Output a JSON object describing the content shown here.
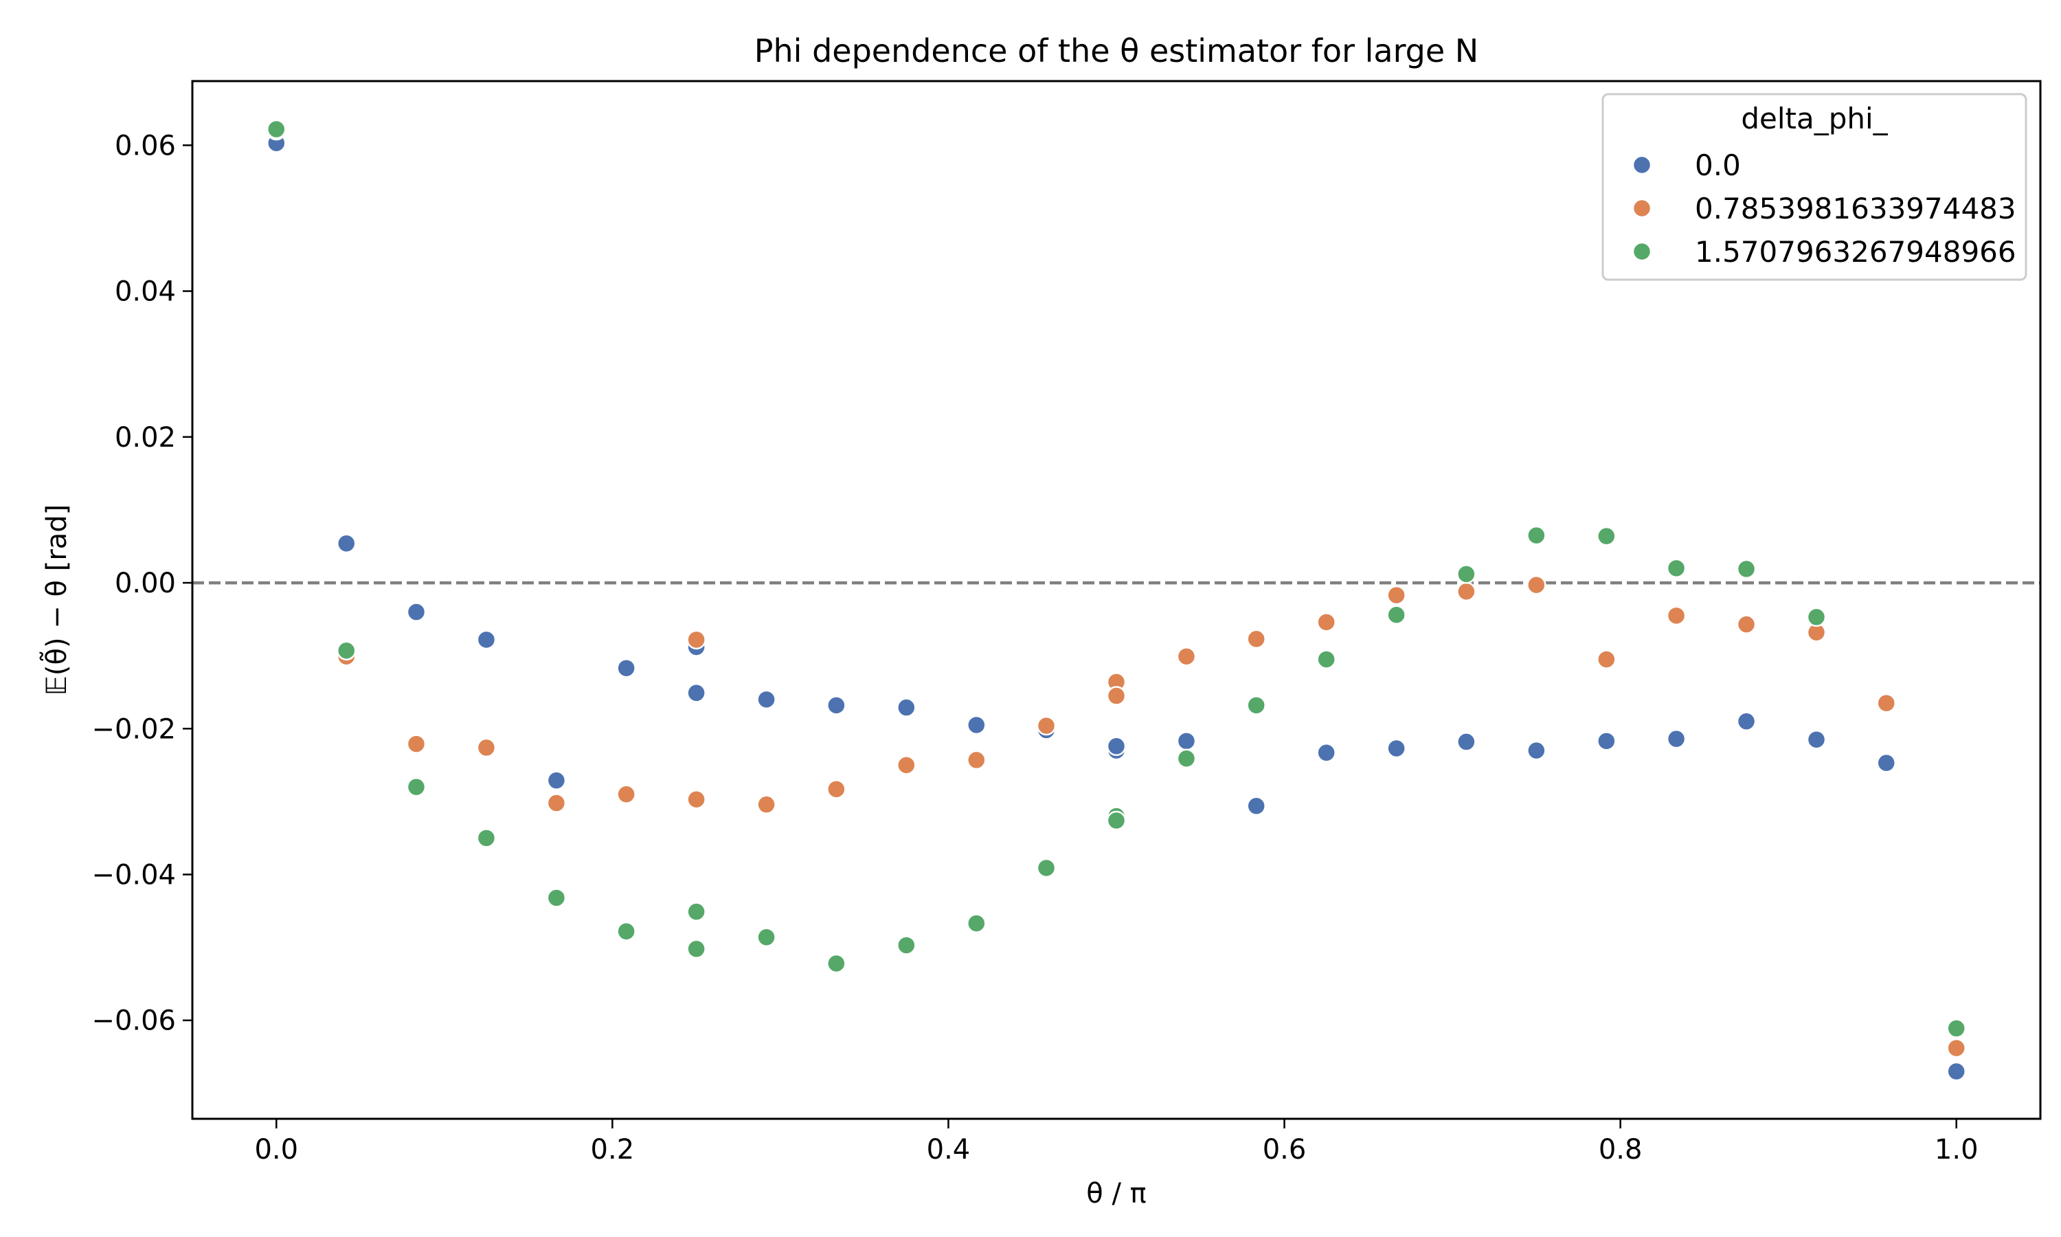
{
  "chart_data": {
    "type": "scatter",
    "title": "Phi dependence of the θ estimator for large N",
    "xlabel": "θ / π",
    "ylabel": "𝔼(θ̃) − θ [rad]",
    "xlim": [
      -0.05,
      1.05
    ],
    "ylim": [
      -0.0735,
      0.0688
    ],
    "xticks": [
      "0.0",
      "0.2",
      "0.4",
      "0.6",
      "0.8",
      "1.0"
    ],
    "xtick_values": [
      0.0,
      0.2,
      0.4,
      0.6,
      0.8,
      1.0
    ],
    "yticks": [
      "−0.06",
      "−0.04",
      "−0.02",
      "0.00",
      "0.02",
      "0.04",
      "0.06"
    ],
    "ytick_values": [
      -0.06,
      -0.04,
      -0.02,
      0.0,
      0.02,
      0.04,
      0.06
    ],
    "reference_line": {
      "y": 0.0,
      "style": "dashed",
      "color": "#808080"
    },
    "grid": false,
    "legend": {
      "title": "delta_phi_",
      "placement": "top-right"
    },
    "series": [
      {
        "name": "0.0",
        "color": "#4c72b0",
        "points": [
          [
            0.0,
            0.0603
          ],
          [
            0.0417,
            0.0054
          ],
          [
            0.0833,
            -0.004
          ],
          [
            0.125,
            -0.0078
          ],
          [
            0.1667,
            -0.0271
          ],
          [
            0.2083,
            -0.0117
          ],
          [
            0.25,
            -0.0088
          ],
          [
            0.25,
            -0.0151
          ],
          [
            0.2917,
            -0.016
          ],
          [
            0.3333,
            -0.0168
          ],
          [
            0.375,
            -0.0171
          ],
          [
            0.4167,
            -0.0195
          ],
          [
            0.4583,
            -0.0202
          ],
          [
            0.5,
            -0.023
          ],
          [
            0.5,
            -0.0224
          ],
          [
            0.5417,
            -0.0217
          ],
          [
            0.5833,
            -0.0306
          ],
          [
            0.625,
            -0.0233
          ],
          [
            0.6667,
            -0.0227
          ],
          [
            0.7083,
            -0.0218
          ],
          [
            0.75,
            -0.023
          ],
          [
            0.7917,
            -0.0217
          ],
          [
            0.8333,
            -0.0214
          ],
          [
            0.875,
            -0.019
          ],
          [
            0.9167,
            -0.0215
          ],
          [
            0.9583,
            -0.0247
          ],
          [
            1.0,
            -0.067
          ]
        ]
      },
      {
        "name": "0.7853981633974483",
        "color": "#dd8452",
        "points": [
          [
            0.0,
            0.062
          ],
          [
            0.0417,
            -0.0101
          ],
          [
            0.0833,
            -0.0221
          ],
          [
            0.125,
            -0.0226
          ],
          [
            0.1667,
            -0.0302
          ],
          [
            0.2083,
            -0.029
          ],
          [
            0.25,
            -0.0078
          ],
          [
            0.25,
            -0.0297
          ],
          [
            0.2917,
            -0.0304
          ],
          [
            0.3333,
            -0.0283
          ],
          [
            0.375,
            -0.025
          ],
          [
            0.4167,
            -0.0243
          ],
          [
            0.4583,
            -0.0196
          ],
          [
            0.5,
            -0.0136
          ],
          [
            0.5,
            -0.0155
          ],
          [
            0.5417,
            -0.0101
          ],
          [
            0.5833,
            -0.0077
          ],
          [
            0.625,
            -0.0054
          ],
          [
            0.6667,
            -0.0017
          ],
          [
            0.7083,
            -0.0012
          ],
          [
            0.75,
            -0.0003
          ],
          [
            0.7917,
            -0.0105
          ],
          [
            0.8333,
            -0.0045
          ],
          [
            0.875,
            -0.0057
          ],
          [
            0.9167,
            -0.0068
          ],
          [
            0.9583,
            -0.0165
          ],
          [
            1.0,
            -0.0638
          ]
        ]
      },
      {
        "name": "1.5707963267948966",
        "color": "#55a868",
        "points": [
          [
            0.0,
            0.0622
          ],
          [
            0.0417,
            -0.0093
          ],
          [
            0.0833,
            -0.028
          ],
          [
            0.125,
            -0.035
          ],
          [
            0.1667,
            -0.0432
          ],
          [
            0.2083,
            -0.0478
          ],
          [
            0.25,
            -0.0451
          ],
          [
            0.25,
            -0.0502
          ],
          [
            0.2917,
            -0.0486
          ],
          [
            0.3333,
            -0.0522
          ],
          [
            0.375,
            -0.0497
          ],
          [
            0.4167,
            -0.0467
          ],
          [
            0.4583,
            -0.0391
          ],
          [
            0.5,
            -0.032
          ],
          [
            0.5,
            -0.0326
          ],
          [
            0.5417,
            -0.0241
          ],
          [
            0.5833,
            -0.0168
          ],
          [
            0.625,
            -0.0105
          ],
          [
            0.6667,
            -0.0044
          ],
          [
            0.7083,
            0.0012
          ],
          [
            0.75,
            0.0065
          ],
          [
            0.7917,
            0.0064
          ],
          [
            0.8333,
            0.002
          ],
          [
            0.875,
            0.0019
          ],
          [
            0.9167,
            -0.0047
          ],
          [
            1.0,
            -0.0611
          ]
        ]
      }
    ]
  }
}
